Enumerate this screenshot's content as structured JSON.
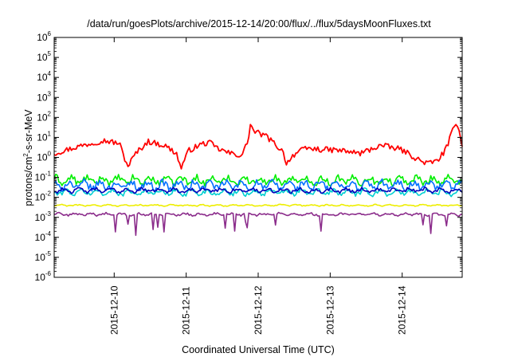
{
  "chart_data": {
    "type": "line",
    "title": "/data/run/goesPlots/archive/2015-12-14/20:00/flux/../flux/5daysMoonFluxes.txt",
    "xlabel": "Coordinated Universal Time (UTC)",
    "ylabel": "protons/cm²-s-sr-MeV",
    "ylabel_parts": {
      "pre": "protons/cm",
      "sup": "2",
      "post": "-s-sr-MeV"
    },
    "yscale": "log",
    "ylim_exp": [
      -6,
      6
    ],
    "ytick_base": "10",
    "ytick_exponents": [
      "-6",
      "-5",
      "-4",
      "-3",
      "-2",
      "-1",
      "0",
      "1",
      "2",
      "3",
      "4",
      "5",
      "6"
    ],
    "xlim": [
      "2015-12-09 04:00",
      "2015-12-14 20:00"
    ],
    "xticks": [
      "2015-12-10",
      "2015-12-11",
      "2015-12-12",
      "2015-12-13",
      "2015-12-14"
    ],
    "grid": false,
    "series": [
      {
        "color": "#ff0000",
        "base": 0.45,
        "noise": 0.28,
        "spikes": 2,
        "profile": [
          [
            0.0,
            0.2
          ],
          [
            0.06,
            0.55
          ],
          [
            0.12,
            0.85
          ],
          [
            0.16,
            0.7
          ],
          [
            0.17,
            0.1
          ],
          [
            0.18,
            -0.45
          ],
          [
            0.2,
            0.2
          ],
          [
            0.23,
            0.8
          ],
          [
            0.27,
            0.6
          ],
          [
            0.3,
            0.2
          ],
          [
            0.31,
            -0.55
          ],
          [
            0.33,
            0.35
          ],
          [
            0.36,
            0.65
          ],
          [
            0.38,
            0.75
          ],
          [
            0.4,
            0.45
          ],
          [
            0.43,
            0.2
          ],
          [
            0.46,
            0.1
          ],
          [
            0.475,
            0.8
          ],
          [
            0.48,
            1.65
          ],
          [
            0.49,
            1.3
          ],
          [
            0.52,
            1.05
          ],
          [
            0.55,
            0.5
          ],
          [
            0.56,
            0.3
          ],
          [
            0.57,
            -0.3
          ],
          [
            0.585,
            0.1
          ],
          [
            0.6,
            0.3
          ],
          [
            0.62,
            0.45
          ],
          [
            0.65,
            0.4
          ],
          [
            0.7,
            0.35
          ],
          [
            0.75,
            0.2
          ],
          [
            0.8,
            0.6
          ],
          [
            0.85,
            0.4
          ],
          [
            0.9,
            -0.2
          ],
          [
            0.92,
            -0.3
          ],
          [
            0.94,
            -0.15
          ],
          [
            0.96,
            0.4
          ],
          [
            0.98,
            1.5
          ],
          [
            0.99,
            1.7
          ],
          [
            1.0,
            0.6
          ]
        ]
      },
      {
        "color": "#00ee00",
        "base": -1.15,
        "noise": 0.32,
        "spikes": 0
      },
      {
        "color": "#0070ff",
        "base": -1.4,
        "noise": 0.34,
        "spikes": 0
      },
      {
        "color": "#00d0d0",
        "base": -1.75,
        "noise": 0.22,
        "spikes": 0
      },
      {
        "color": "#0000bb",
        "base": -1.65,
        "noise": 0.16,
        "spikes": 0
      },
      {
        "color": "#eeee00",
        "base": -2.4,
        "noise": 0.06,
        "spikes": 0
      },
      {
        "color": "#8b2c8b",
        "base": -2.85,
        "noise": 0.1,
        "spikes": 1
      }
    ]
  }
}
